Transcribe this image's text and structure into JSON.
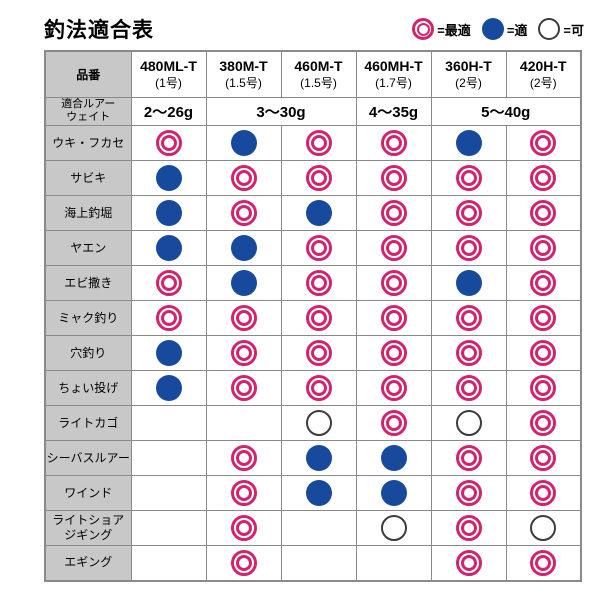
{
  "title": "釣法適合表",
  "legend": [
    {
      "type": "best",
      "label": "=最適"
    },
    {
      "type": "good",
      "label": "=適"
    },
    {
      "type": "ok",
      "label": "=可"
    }
  ],
  "colors": {
    "best": "#d2246d",
    "good": "#17499c",
    "ok": "#3c3c3c",
    "header_bg": "#c8c8c8",
    "border": "#8a8a8a",
    "title": "#000000"
  },
  "chart_data": {
    "type": "table",
    "title": "釣法適合表",
    "corner_header": "品番",
    "symbol_meanings": {
      "best": "最適",
      "good": "適",
      "ok": "可",
      "none": ""
    },
    "columns": [
      {
        "model": "480ML-T",
        "gou": "(1号)"
      },
      {
        "model": "380M-T",
        "gou": "(1.5号)"
      },
      {
        "model": "460M-T",
        "gou": "(1.5号)"
      },
      {
        "model": "460MH-T",
        "gou": "(1.7号)"
      },
      {
        "model": "360H-T",
        "gou": "(2号)"
      },
      {
        "model": "420H-T",
        "gou": "(2号)"
      }
    ],
    "lure_weight_row": {
      "label": "適合ルアー\nウェイト",
      "cells": [
        {
          "text": "2〜26g",
          "colspan": 1
        },
        {
          "text": "3〜30g",
          "colspan": 2
        },
        {
          "text": "4〜35g",
          "colspan": 1
        },
        {
          "text": "5〜40g",
          "colspan": 2
        }
      ]
    },
    "rows": [
      {
        "label": "ウキ・フカセ",
        "values": [
          "best",
          "good",
          "best",
          "best",
          "good",
          "best"
        ]
      },
      {
        "label": "サビキ",
        "values": [
          "good",
          "best",
          "best",
          "best",
          "best",
          "best"
        ]
      },
      {
        "label": "海上釣堀",
        "values": [
          "good",
          "best",
          "good",
          "best",
          "best",
          "best"
        ]
      },
      {
        "label": "ヤエン",
        "values": [
          "good",
          "good",
          "best",
          "best",
          "best",
          "best"
        ]
      },
      {
        "label": "エビ撒き",
        "values": [
          "best",
          "good",
          "best",
          "best",
          "good",
          "best"
        ]
      },
      {
        "label": "ミャク釣り",
        "values": [
          "best",
          "best",
          "best",
          "best",
          "best",
          "best"
        ]
      },
      {
        "label": "穴釣り",
        "values": [
          "good",
          "best",
          "best",
          "best",
          "best",
          "best"
        ]
      },
      {
        "label": "ちょい投げ",
        "values": [
          "good",
          "best",
          "best",
          "best",
          "best",
          "best"
        ]
      },
      {
        "label": "ライトカゴ",
        "values": [
          "none",
          "none",
          "ok",
          "best",
          "ok",
          "best"
        ]
      },
      {
        "label": "シーバスルアー",
        "values": [
          "none",
          "best",
          "good",
          "good",
          "best",
          "best"
        ]
      },
      {
        "label": "ワインド",
        "values": [
          "none",
          "best",
          "good",
          "good",
          "best",
          "best"
        ]
      },
      {
        "label": "ライトショア\nジギング",
        "values": [
          "none",
          "best",
          "none",
          "ok",
          "best",
          "ok"
        ]
      },
      {
        "label": "エギング",
        "values": [
          "none",
          "best",
          "none",
          "none",
          "best",
          "best"
        ]
      }
    ]
  }
}
